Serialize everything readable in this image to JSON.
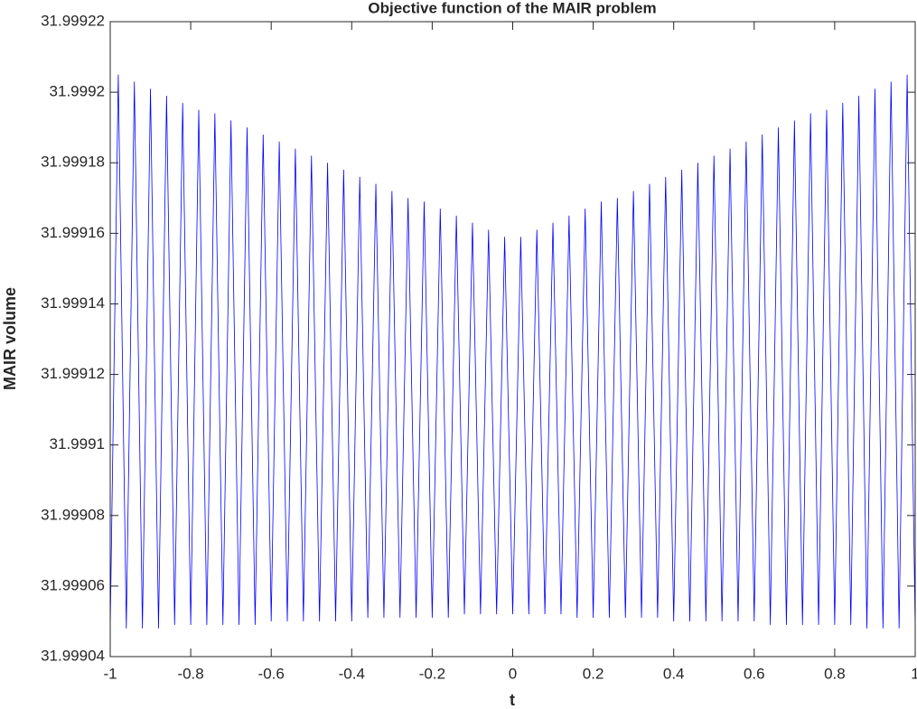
{
  "chart_data": {
    "type": "line",
    "title": "Objective function of the MAIR problem",
    "xlabel": "t",
    "ylabel": "MAIR volume",
    "x": [
      -1,
      -0.98,
      -0.96,
      -0.94,
      -0.92,
      -0.9,
      -0.88,
      -0.86,
      -0.84,
      -0.82,
      -0.8,
      -0.78,
      -0.76,
      -0.74,
      -0.72,
      -0.7,
      -0.68,
      -0.66,
      -0.64,
      -0.62,
      -0.6,
      -0.58,
      -0.56,
      -0.54,
      -0.52,
      -0.5,
      -0.48,
      -0.46,
      -0.44,
      -0.42,
      -0.4,
      -0.38,
      -0.36,
      -0.34,
      -0.32,
      -0.3,
      -0.28,
      -0.26,
      -0.24,
      -0.22,
      -0.2,
      -0.18,
      -0.16,
      -0.14,
      -0.12,
      -0.1,
      -0.08,
      -0.06,
      -0.04,
      -0.02,
      0,
      0.02,
      0.04,
      0.06,
      0.08,
      0.1,
      0.12,
      0.14,
      0.16,
      0.18,
      0.2,
      0.22,
      0.24,
      0.26,
      0.28,
      0.3,
      0.32,
      0.34,
      0.36,
      0.38,
      0.4,
      0.42,
      0.44,
      0.46,
      0.48,
      0.5,
      0.52,
      0.54,
      0.56,
      0.58,
      0.6,
      0.62,
      0.64,
      0.66,
      0.68,
      0.7,
      0.72,
      0.74,
      0.76,
      0.78,
      0.8,
      0.82,
      0.84,
      0.86,
      0.88,
      0.9,
      0.92,
      0.94,
      0.96,
      0.98,
      1
    ],
    "series": [
      {
        "name": "MAIR volume",
        "color": "#0000ff",
        "values": [
          31.999048,
          31.999205,
          31.999048,
          31.999203,
          31.999048,
          31.999201,
          31.999048,
          31.999199,
          31.999049,
          31.999197,
          31.999049,
          31.999195,
          31.999049,
          31.999194,
          31.999049,
          31.999192,
          31.999049,
          31.99919,
          31.999049,
          31.999188,
          31.99905,
          31.999186,
          31.99905,
          31.999184,
          31.99905,
          31.999182,
          31.99905,
          31.99918,
          31.99905,
          31.999178,
          31.99905,
          31.999176,
          31.999051,
          31.999174,
          31.999051,
          31.999172,
          31.999051,
          31.99917,
          31.999051,
          31.999169,
          31.999051,
          31.999167,
          31.999051,
          31.999165,
          31.999052,
          31.999163,
          31.999052,
          31.999161,
          31.999052,
          31.999159,
          31.999052,
          31.999159,
          31.999052,
          31.999161,
          31.999052,
          31.999163,
          31.999052,
          31.999165,
          31.999051,
          31.999167,
          31.999051,
          31.999169,
          31.999051,
          31.99917,
          31.999051,
          31.999172,
          31.999051,
          31.999174,
          31.999051,
          31.999176,
          31.99905,
          31.999178,
          31.99905,
          31.99918,
          31.99905,
          31.999182,
          31.99905,
          31.999184,
          31.99905,
          31.999186,
          31.99905,
          31.999188,
          31.999049,
          31.99919,
          31.999049,
          31.999192,
          31.999049,
          31.999194,
          31.999049,
          31.999195,
          31.999049,
          31.999197,
          31.999049,
          31.999199,
          31.999048,
          31.999201,
          31.999048,
          31.999203,
          31.999048,
          31.999205,
          31.999048
        ]
      }
    ],
    "xlim": [
      -1,
      1
    ],
    "xticks": [
      -1,
      -0.8,
      -0.6,
      -0.4,
      -0.2,
      0,
      0.2,
      0.4,
      0.6,
      0.8,
      1
    ],
    "ylim": [
      31.99904,
      31.99922
    ],
    "yticks": [
      31.99904,
      31.99906,
      31.99908,
      31.9991,
      31.99912,
      31.99914,
      31.99916,
      31.99918,
      31.9992,
      31.99922
    ],
    "grid": false
  }
}
